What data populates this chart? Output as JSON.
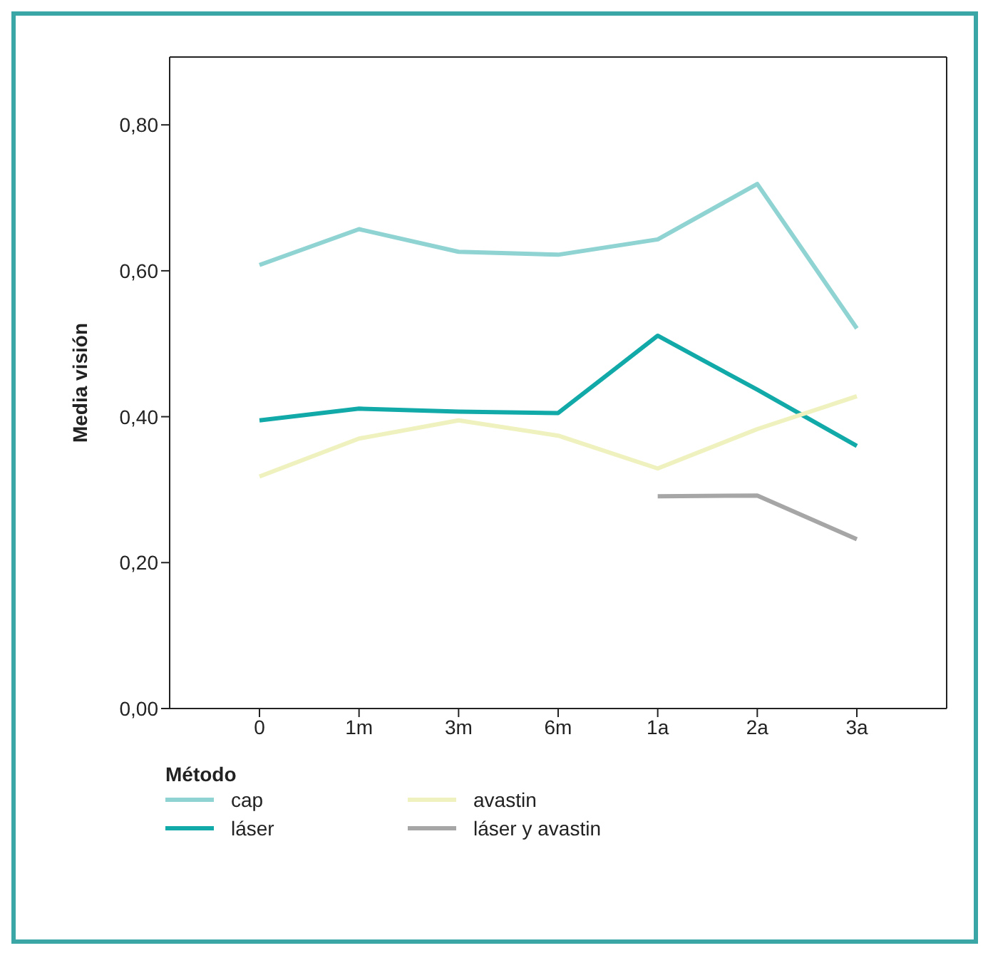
{
  "chart_data": {
    "type": "line",
    "categories": [
      "0",
      "1m",
      "3m",
      "6m",
      "1a",
      "2a",
      "3a"
    ],
    "ylabel": "Media visión",
    "legend_title": "Método",
    "series": [
      {
        "name": "cap",
        "color": "#8fd3d3",
        "values": [
          0.608,
          0.657,
          0.626,
          0.622,
          0.643,
          0.719,
          0.521
        ]
      },
      {
        "name": "láser",
        "color": "#12a9a9",
        "values": [
          0.395,
          0.411,
          0.407,
          0.405,
          0.511,
          0.437,
          0.36
        ]
      },
      {
        "name": "avastin",
        "color": "#eff2be",
        "values": [
          0.318,
          0.37,
          0.395,
          0.374,
          0.329,
          0.383,
          0.428
        ]
      },
      {
        "name": "láser y avastin",
        "color": "#a6a6a6",
        "values": [
          null,
          null,
          null,
          null,
          0.291,
          0.292,
          0.232
        ]
      }
    ],
    "ylim": [
      0,
      0.893
    ],
    "yticks": [
      {
        "value": 0,
        "label": "0,00"
      },
      {
        "value": 0.2,
        "label": "0,20"
      },
      {
        "value": 0.4,
        "label": "0,40"
      },
      {
        "value": 0.6,
        "label": "0,60"
      },
      {
        "value": 0.8,
        "label": "0,80"
      }
    ],
    "grid": false,
    "legend": "bottom",
    "marker": "none",
    "line_style": "solid"
  }
}
